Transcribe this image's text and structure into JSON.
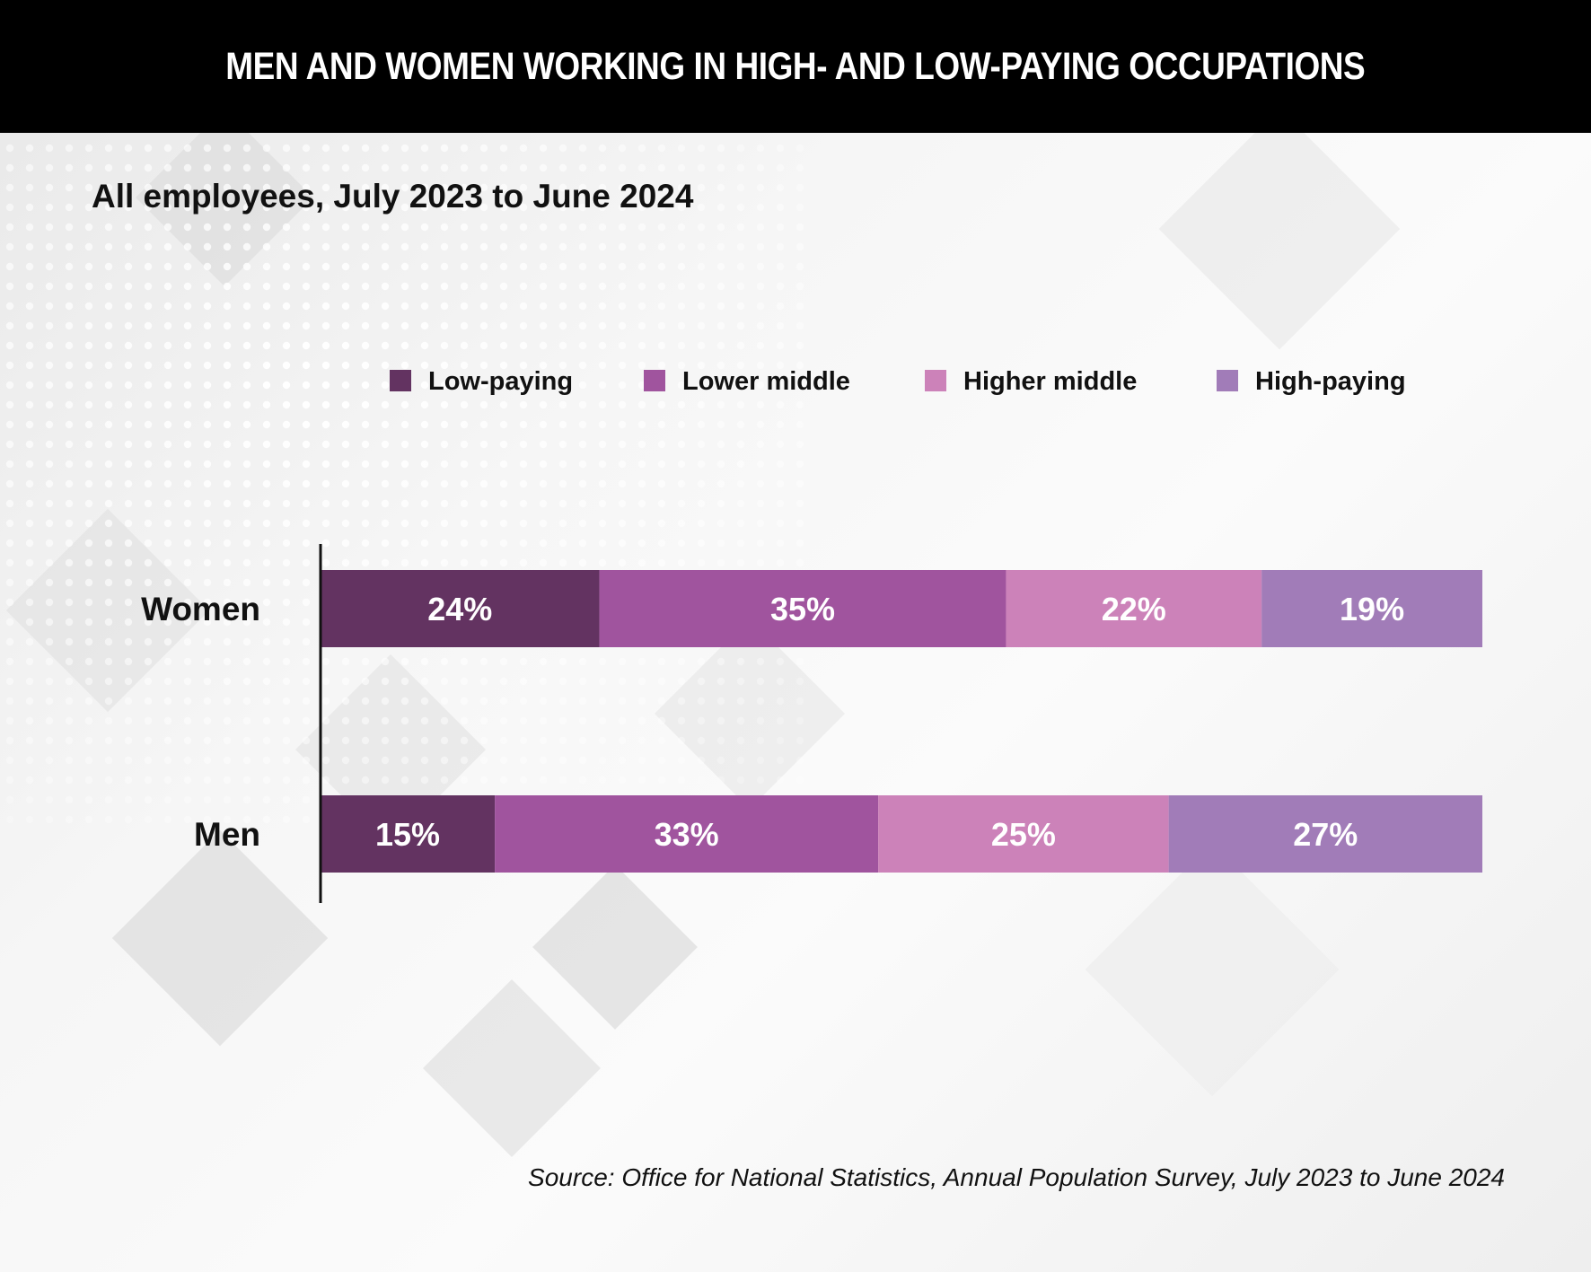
{
  "header": {
    "title": "MEN AND WOMEN WORKING IN HIGH- AND LOW-PAYING OCCUPATIONS"
  },
  "subtitle": "All employees, July 2023 to June 2024",
  "source": "Source: Office for National Statistics, Annual Population Survey, July 2023 to June 2024",
  "chart_data": {
    "type": "bar",
    "orientation": "horizontal",
    "stacked": true,
    "categories": [
      "Women",
      "Men"
    ],
    "series": [
      {
        "name": "Low-paying",
        "color": "#633361",
        "values": [
          24,
          15
        ],
        "labels": [
          "24%",
          "15%"
        ]
      },
      {
        "name": "Lower middle",
        "color": "#a0549e",
        "values": [
          35,
          33
        ],
        "labels": [
          "35%",
          "33%"
        ]
      },
      {
        "name": "Higher middle",
        "color": "#cc82b9",
        "values": [
          22,
          25
        ],
        "labels": [
          "22%",
          "25%"
        ]
      },
      {
        "name": "High-paying",
        "color": "#a17cb8",
        "values": [
          19,
          27
        ],
        "labels": [
          "19%",
          "27%"
        ]
      }
    ],
    "xlim": [
      0,
      100
    ],
    "legend_position": "top",
    "grid": false
  }
}
